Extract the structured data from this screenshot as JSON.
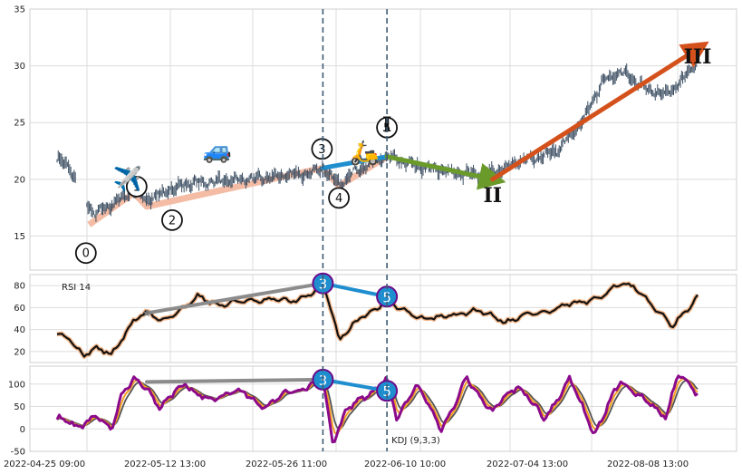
{
  "chart_data": [
    {
      "type": "candlestick",
      "panel": "price",
      "ylim": [
        12,
        35
      ],
      "yticks": [
        15,
        20,
        25,
        30,
        35
      ],
      "x_tick_labels": [
        "2022-04-25 09:00",
        "2022-05-12 13:00",
        "2022-05-26 11:00",
        "2022-06-10 10:00",
        "2022-07-04 13:00",
        "2022-08-08 13:00"
      ],
      "vertical_markers": [
        0.415,
        0.515
      ],
      "price_keypoints": [
        [
          0.0,
          21.8
        ],
        [
          0.02,
          21.0
        ],
        [
          0.035,
          19.2
        ],
        [
          0.05,
          17.5
        ],
        [
          0.06,
          17.0
        ],
        [
          0.085,
          17.8
        ],
        [
          0.12,
          19.0
        ],
        [
          0.14,
          18.2
        ],
        [
          0.2,
          19.6
        ],
        [
          0.3,
          20.0
        ],
        [
          0.4,
          20.6
        ],
        [
          0.415,
          21.0
        ],
        [
          0.44,
          19.6
        ],
        [
          0.47,
          20.8
        ],
        [
          0.515,
          22.0
        ],
        [
          0.56,
          21.2
        ],
        [
          0.62,
          20.6
        ],
        [
          0.66,
          20.3
        ],
        [
          0.72,
          21.5
        ],
        [
          0.78,
          22.5
        ],
        [
          0.82,
          25.0
        ],
        [
          0.85,
          28.5
        ],
        [
          0.88,
          29.5
        ],
        [
          0.92,
          28.0
        ],
        [
          0.95,
          27.5
        ],
        [
          0.97,
          28.3
        ],
        [
          1.0,
          30.5
        ]
      ],
      "waves": [
        {
          "label": "0",
          "x": 0.05,
          "y": 16.0
        },
        {
          "label": "1",
          "x": 0.12,
          "y": 18.8
        },
        {
          "label": "2",
          "x": 0.14,
          "y": 17.6
        },
        {
          "label": "3",
          "x": 0.415,
          "y": 21.0
        },
        {
          "label": "4",
          "x": 0.44,
          "y": 19.4
        },
        {
          "label": "5",
          "x": 0.515,
          "y": 22.0
        }
      ],
      "trend_lines": [
        {
          "from": [
            0.415,
            21.0
          ],
          "to": [
            0.515,
            22.0
          ],
          "color": "#1f8ecf"
        },
        {
          "from": [
            0.515,
            22.0
          ],
          "to": [
            0.68,
            20.0
          ],
          "color": "#6a9a2a"
        },
        {
          "from": [
            0.68,
            20.0
          ],
          "to": [
            1.0,
            31.5
          ],
          "color": "#d4511b"
        }
      ],
      "roman_labels": [
        {
          "label": "I",
          "x": 0.515,
          "y": 24.2
        },
        {
          "label": "II",
          "x": 0.68,
          "y": 18.0
        },
        {
          "label": "III",
          "x": 1.0,
          "y": 30.2
        }
      ],
      "icons": [
        {
          "name": "airplane",
          "glyph": "✈️",
          "x": 0.11,
          "y": 20.0
        },
        {
          "name": "car",
          "glyph": "🚙",
          "x": 0.25,
          "y": 22.5
        },
        {
          "name": "scooter",
          "glyph": "🛵",
          "x": 0.48,
          "y": 22.3
        }
      ]
    },
    {
      "type": "line",
      "panel": "rsi",
      "label": "RSI 14",
      "ylim": [
        10,
        90
      ],
      "yticks": [
        20,
        40,
        60,
        80
      ],
      "keypoints": [
        [
          0.0,
          37
        ],
        [
          0.02,
          30
        ],
        [
          0.04,
          17
        ],
        [
          0.06,
          24
        ],
        [
          0.085,
          16
        ],
        [
          0.1,
          30
        ],
        [
          0.12,
          50
        ],
        [
          0.14,
          55
        ],
        [
          0.16,
          48
        ],
        [
          0.2,
          60
        ],
        [
          0.22,
          70
        ],
        [
          0.26,
          62
        ],
        [
          0.3,
          67
        ],
        [
          0.36,
          66
        ],
        [
          0.4,
          72
        ],
        [
          0.415,
          82
        ],
        [
          0.43,
          55
        ],
        [
          0.44,
          32
        ],
        [
          0.47,
          48
        ],
        [
          0.5,
          60
        ],
        [
          0.515,
          70
        ],
        [
          0.53,
          60
        ],
        [
          0.56,
          52
        ],
        [
          0.6,
          50
        ],
        [
          0.65,
          58
        ],
        [
          0.7,
          48
        ],
        [
          0.75,
          55
        ],
        [
          0.8,
          62
        ],
        [
          0.85,
          70
        ],
        [
          0.88,
          82
        ],
        [
          0.9,
          80
        ],
        [
          0.93,
          60
        ],
        [
          0.96,
          45
        ],
        [
          0.98,
          55
        ],
        [
          1.0,
          68
        ]
      ],
      "waves": [
        {
          "label": "3",
          "x": 0.415,
          "y": 82
        },
        {
          "label": "5",
          "x": 0.515,
          "y": 70
        }
      ],
      "divergence_lines": [
        {
          "from": [
            0.14,
            55
          ],
          "to": [
            0.415,
            82
          ],
          "color": "#8c8c8c"
        },
        {
          "from": [
            0.415,
            82
          ],
          "to": [
            0.515,
            70
          ],
          "color": "#1f8ecf"
        }
      ]
    },
    {
      "type": "line",
      "panel": "kdj",
      "label": "KDJ (9,3,3)",
      "ylim": [
        -50,
        140
      ],
      "yticks": [
        -50,
        0,
        50,
        100
      ],
      "series": [
        {
          "name": "K",
          "color": "#f5a023"
        },
        {
          "name": "D",
          "color": "#555555"
        },
        {
          "name": "J",
          "color": "#8b0a8b"
        }
      ],
      "j_keypoints": [
        [
          0.0,
          25
        ],
        [
          0.03,
          5
        ],
        [
          0.06,
          30
        ],
        [
          0.085,
          -5
        ],
        [
          0.1,
          80
        ],
        [
          0.12,
          110
        ],
        [
          0.14,
          90
        ],
        [
          0.16,
          50
        ],
        [
          0.2,
          100
        ],
        [
          0.24,
          60
        ],
        [
          0.28,
          90
        ],
        [
          0.32,
          50
        ],
        [
          0.36,
          80
        ],
        [
          0.4,
          100
        ],
        [
          0.415,
          110
        ],
        [
          0.43,
          -30
        ],
        [
          0.45,
          40
        ],
        [
          0.48,
          70
        ],
        [
          0.515,
          110
        ],
        [
          0.53,
          20
        ],
        [
          0.56,
          100
        ],
        [
          0.6,
          0
        ],
        [
          0.64,
          110
        ],
        [
          0.68,
          40
        ],
        [
          0.72,
          100
        ],
        [
          0.76,
          20
        ],
        [
          0.8,
          110
        ],
        [
          0.84,
          -10
        ],
        [
          0.88,
          110
        ],
        [
          0.92,
          60
        ],
        [
          0.95,
          30
        ],
        [
          0.97,
          120
        ],
        [
          1.0,
          80
        ]
      ],
      "waves": [
        {
          "label": "3",
          "x": 0.415,
          "y": 110
        },
        {
          "label": "5",
          "x": 0.515,
          "y": 85
        }
      ],
      "divergence_lines": [
        {
          "from": [
            0.14,
            105
          ],
          "to": [
            0.415,
            110
          ],
          "color": "#8c8c8c"
        },
        {
          "from": [
            0.415,
            110
          ],
          "to": [
            0.515,
            85
          ],
          "color": "#1f8ecf"
        }
      ]
    }
  ]
}
